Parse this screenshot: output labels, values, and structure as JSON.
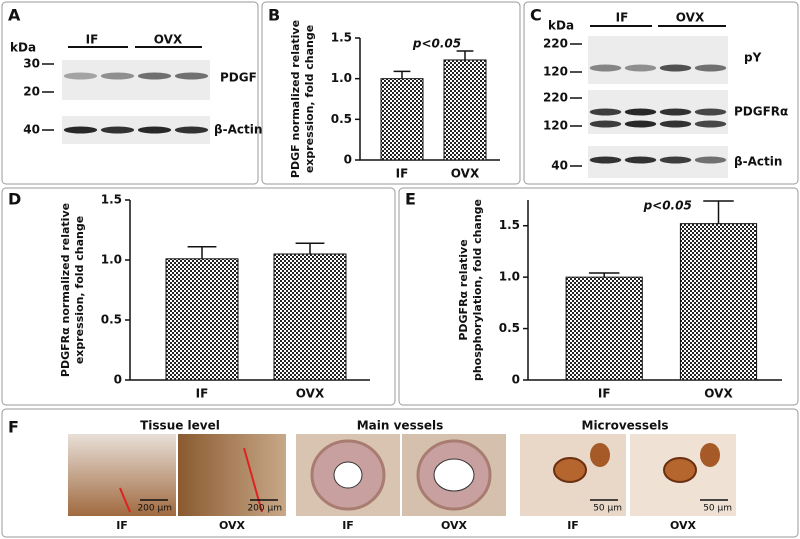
{
  "panel_labels": [
    "A",
    "B",
    "C",
    "D",
    "E",
    "F"
  ],
  "blot_a": {
    "kda": "kDa",
    "groups": [
      "IF",
      "OVX"
    ],
    "markers": [
      "30",
      "20",
      "40"
    ],
    "bands": [
      "PDGF",
      "β-Actin"
    ]
  },
  "blot_c": {
    "kda": "kDa",
    "groups": [
      "IF",
      "OVX"
    ],
    "markers": [
      "220",
      "120",
      "220",
      "120",
      "40"
    ],
    "bands": [
      "pY",
      "PDGFRα",
      "β-Actin"
    ]
  },
  "chart_data": [
    {
      "type": "bar",
      "ylabel": [
        "PDGF normalized relative",
        "expression, fold change"
      ],
      "categories": [
        "IF",
        "OVX"
      ],
      "values": [
        1.0,
        1.23
      ],
      "errors": [
        0.09,
        0.11
      ],
      "color": "#222222",
      "ylim": [
        0,
        1.5
      ],
      "yticks": [
        0,
        0.5,
        {
          "value": 1,
          "label": "1.0"
        },
        1.5
      ],
      "annotation": "p<0.05"
    },
    {
      "type": "bar",
      "ylabel": [
        "PDGFRα normalized relative",
        "expression, fold change"
      ],
      "categories": [
        "IF",
        "OVX"
      ],
      "values": [
        1.01,
        1.05
      ],
      "errors": [
        0.1,
        0.09
      ],
      "color": "#222222",
      "ylim": [
        0,
        1.5
      ],
      "yticks": [
        0,
        0.5,
        {
          "value": 1,
          "label": "1.0"
        },
        1.5
      ]
    },
    {
      "type": "bar",
      "ylabel": [
        "PDGFRα relative",
        "phosphorylation, fold change"
      ],
      "categories": [
        "IF",
        "OVX"
      ],
      "values": [
        1.0,
        1.52
      ],
      "errors": [
        0.04,
        0.22
      ],
      "color": "#222222",
      "ylim": [
        0,
        1.75
      ],
      "yticks": [
        0,
        0.5,
        {
          "value": 1,
          "label": "1.0"
        },
        1.5
      ],
      "annotation": "p<0.05"
    }
  ],
  "micrographs": {
    "titles": [
      "Tissue level",
      "Main vessels",
      "Microvessels"
    ],
    "images": [
      {
        "label": "IF",
        "scale": "200 µm"
      },
      {
        "label": "OVX",
        "scale": "200 µm"
      },
      {
        "label": "IF"
      },
      {
        "label": "OVX"
      },
      {
        "label": "IF",
        "scale": "50 µm"
      },
      {
        "label": "OVX",
        "scale": "50 µm"
      }
    ]
  }
}
